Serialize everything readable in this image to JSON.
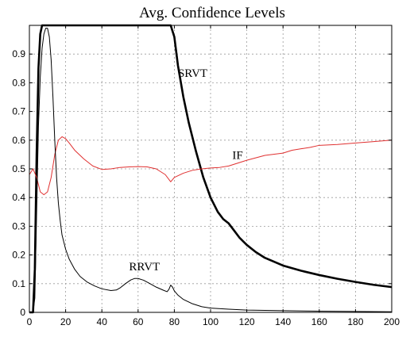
{
  "chart_data": {
    "type": "line",
    "title": "Avg. Confidence Levels",
    "xlabel": "",
    "ylabel": "",
    "xlim": [
      0,
      200
    ],
    "ylim": [
      0,
      1.0
    ],
    "grid": true,
    "x_ticks": [
      0,
      20,
      40,
      60,
      80,
      100,
      120,
      140,
      160,
      180,
      200
    ],
    "x_tick_labels": [
      "0",
      "20",
      "40",
      "60",
      "80",
      "100",
      "120",
      "140",
      "160",
      "180",
      "200"
    ],
    "y_ticks": [
      0,
      0.1,
      0.2,
      0.3,
      0.4,
      0.5,
      0.6,
      0.7,
      0.8,
      0.9
    ],
    "y_tick_labels": [
      "0",
      "0.1",
      "0.2",
      "0.3",
      "0.4",
      "0.5",
      "0.6",
      "0.7",
      "0.8",
      "0.9"
    ],
    "series": [
      {
        "name": "SRVT",
        "color": "#000000",
        "line_weight": "heavy",
        "x": [
          0,
          2,
          3,
          4,
          5,
          6,
          7,
          8,
          10,
          20,
          40,
          60,
          78,
          80,
          82,
          85,
          88,
          92,
          96,
          100,
          104,
          107,
          110,
          113,
          116,
          120,
          125,
          130,
          140,
          150,
          160,
          170,
          180,
          190,
          200
        ],
        "y": [
          0,
          0,
          0.15,
          0.55,
          0.85,
          0.97,
          1.0,
          1.0,
          1.0,
          1.0,
          1.0,
          1.0,
          1.0,
          0.96,
          0.86,
          0.75,
          0.66,
          0.56,
          0.47,
          0.4,
          0.35,
          0.325,
          0.31,
          0.285,
          0.26,
          0.235,
          0.21,
          0.19,
          0.163,
          0.145,
          0.13,
          0.117,
          0.106,
          0.096,
          0.088
        ]
      },
      {
        "name": "IF",
        "color": "#e03030",
        "line_weight": "thin",
        "x": [
          0,
          2,
          4,
          6,
          8,
          10,
          12,
          14,
          16,
          18,
          20,
          22,
          25,
          30,
          35,
          40,
          45,
          50,
          55,
          60,
          65,
          70,
          75,
          78,
          80,
          85,
          90,
          95,
          100,
          105,
          110,
          115,
          120,
          130,
          140,
          145,
          150,
          155,
          160,
          170,
          180,
          190,
          200
        ],
        "y": [
          0.48,
          0.5,
          0.47,
          0.42,
          0.41,
          0.42,
          0.47,
          0.55,
          0.6,
          0.612,
          0.605,
          0.59,
          0.565,
          0.535,
          0.51,
          0.498,
          0.5,
          0.505,
          0.507,
          0.508,
          0.507,
          0.5,
          0.48,
          0.455,
          0.47,
          0.485,
          0.495,
          0.5,
          0.503,
          0.505,
          0.51,
          0.52,
          0.53,
          0.547,
          0.555,
          0.565,
          0.57,
          0.575,
          0.582,
          0.585,
          0.59,
          0.595,
          0.6
        ]
      },
      {
        "name": "RRVT",
        "color": "#000000",
        "line_weight": "thin",
        "x": [
          0,
          2,
          3,
          4,
          5,
          6,
          7,
          8,
          9,
          10,
          11,
          12,
          13,
          14,
          15,
          16,
          17,
          18,
          20,
          22,
          25,
          28,
          32,
          36,
          40,
          45,
          48,
          50,
          53,
          56,
          58,
          60,
          63,
          66,
          70,
          74,
          76,
          77,
          78,
          79,
          80,
          82,
          85,
          90,
          95,
          100,
          110,
          120,
          140,
          160,
          180,
          200
        ],
        "y": [
          0,
          0,
          0.05,
          0.35,
          0.65,
          0.82,
          0.92,
          0.97,
          0.99,
          0.99,
          0.96,
          0.88,
          0.75,
          0.6,
          0.47,
          0.38,
          0.32,
          0.27,
          0.22,
          0.185,
          0.15,
          0.125,
          0.105,
          0.092,
          0.082,
          0.076,
          0.078,
          0.085,
          0.1,
          0.113,
          0.118,
          0.118,
          0.112,
          0.102,
          0.088,
          0.077,
          0.072,
          0.08,
          0.095,
          0.088,
          0.075,
          0.06,
          0.045,
          0.03,
          0.02,
          0.015,
          0.011,
          0.008,
          0.006,
          0.004,
          0.003,
          0.002
        ]
      }
    ],
    "annotations": [
      {
        "text": "SRVT",
        "x": 82,
        "y": 0.82
      },
      {
        "text": "IF",
        "x": 112,
        "y": 0.535
      },
      {
        "text": "RRVT",
        "x": 55,
        "y": 0.147
      }
    ]
  }
}
